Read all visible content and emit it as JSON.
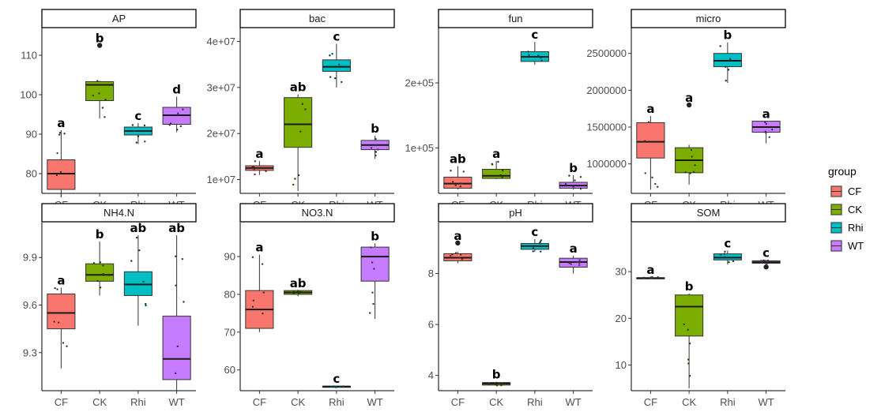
{
  "chart_data": {
    "type": "boxplot",
    "layout": "faceted 2x4, free y scales",
    "categories": [
      "CF",
      "CK",
      "Rhi",
      "WT"
    ],
    "legend": {
      "title": "group",
      "position": "right",
      "entries": [
        {
          "label": "CF",
          "color": "#F8766D"
        },
        {
          "label": "CK",
          "color": "#7CAE00"
        },
        {
          "label": "Rhi",
          "color": "#00BFC4"
        },
        {
          "label": "WT",
          "color": "#C77CFF"
        }
      ]
    },
    "panels": [
      {
        "title": "AP",
        "ylim": [
          75,
          117
        ],
        "yticks": [
          80,
          90,
          100,
          110
        ],
        "tick_labels": [
          "80",
          "90",
          "100",
          "110"
        ],
        "boxes": [
          {
            "group": "CF",
            "lower": 74,
            "q1": 76,
            "median": 80,
            "q3": 83.5,
            "upper": 91,
            "outliers": []
          },
          {
            "group": "CK",
            "lower": 94,
            "q1": 98.5,
            "median": 102.5,
            "q3": 103.3,
            "upper": 103.5,
            "outliers": [
              112.5
            ]
          },
          {
            "group": "Rhi",
            "lower": 87.5,
            "q1": 89.8,
            "median": 90.8,
            "q3": 91.8,
            "upper": 92.8,
            "outliers": []
          },
          {
            "group": "WT",
            "lower": 90.5,
            "q1": 92.5,
            "median": 94.8,
            "q3": 96.8,
            "upper": 99.5,
            "outliers": []
          }
        ],
        "letters": [
          "a",
          "b",
          "c",
          "d"
        ]
      },
      {
        "title": "bac",
        "ylim": [
          7000000,
          43000000
        ],
        "yticks": [
          10000000,
          20000000,
          30000000,
          40000000
        ],
        "tick_labels": [
          "1e+07",
          "2e+07",
          "3e+07",
          "4e+07"
        ],
        "boxes": [
          {
            "group": "CF",
            "lower": 11000000,
            "q1": 12000000,
            "median": 12500000,
            "q3": 13000000,
            "upper": 14000000,
            "outliers": []
          },
          {
            "group": "CK",
            "lower": 7500000,
            "q1": 17000000,
            "median": 22000000,
            "q3": 27800000,
            "upper": 28500000,
            "outliers": []
          },
          {
            "group": "Rhi",
            "lower": 30000000,
            "q1": 33500000,
            "median": 34500000,
            "q3": 36000000,
            "upper": 39500000,
            "outliers": []
          },
          {
            "group": "WT",
            "lower": 14500000,
            "q1": 16500000,
            "median": 17500000,
            "q3": 18500000,
            "upper": 19500000,
            "outliers": []
          }
        ],
        "letters": [
          "a",
          "ab",
          "c",
          "b"
        ]
      },
      {
        "title": "fun",
        "ylim": [
          30000,
          285000
        ],
        "yticks": [
          100000,
          200000
        ],
        "tick_labels": [
          "1e+05",
          "2e+05"
        ],
        "boxes": [
          {
            "group": "CF",
            "lower": 36000,
            "q1": 38000,
            "median": 45000,
            "q3": 55000,
            "upper": 72000,
            "outliers": []
          },
          {
            "group": "CK",
            "lower": 52000,
            "q1": 53000,
            "median": 57000,
            "q3": 67000,
            "upper": 80000,
            "outliers": []
          },
          {
            "group": "Rhi",
            "lower": 228000,
            "q1": 233000,
            "median": 240000,
            "q3": 248000,
            "upper": 263000,
            "outliers": []
          },
          {
            "group": "WT",
            "lower": 36000,
            "q1": 38000,
            "median": 42000,
            "q3": 47000,
            "upper": 58000,
            "outliers": []
          }
        ],
        "letters": [
          "ab",
          "a",
          "c",
          "b"
        ]
      },
      {
        "title": "micro",
        "ylim": [
          600000,
          2850000
        ],
        "yticks": [
          1000000,
          1500000,
          2000000,
          2500000
        ],
        "tick_labels": [
          "1000000",
          "1500000",
          "2000000",
          "2500000"
        ],
        "boxes": [
          {
            "group": "CF",
            "lower": 650000,
            "q1": 1080000,
            "median": 1300000,
            "q3": 1560000,
            "upper": 1650000,
            "outliers": []
          },
          {
            "group": "CK",
            "lower": 720000,
            "q1": 880000,
            "median": 1050000,
            "q3": 1220000,
            "upper": 1260000,
            "outliers": [
              1800000
            ]
          },
          {
            "group": "Rhi",
            "lower": 2100000,
            "q1": 2320000,
            "median": 2400000,
            "q3": 2500000,
            "upper": 2650000,
            "outliers": []
          },
          {
            "group": "WT",
            "lower": 1280000,
            "q1": 1430000,
            "median": 1500000,
            "q3": 1580000,
            "upper": 1580000,
            "outliers": []
          }
        ],
        "letters": [
          "a",
          "a",
          "b",
          "a"
        ]
      },
      {
        "title": "NH4.N",
        "ylim": [
          9.06,
          10.12
        ],
        "yticks": [
          9.3,
          9.6,
          9.9
        ],
        "tick_labels": [
          "9.3",
          "9.6",
          "9.9"
        ],
        "boxes": [
          {
            "group": "CF",
            "lower": 9.2,
            "q1": 9.45,
            "median": 9.55,
            "q3": 9.67,
            "upper": 9.71,
            "outliers": []
          },
          {
            "group": "CK",
            "lower": 9.66,
            "q1": 9.75,
            "median": 9.79,
            "q3": 9.86,
            "upper": 10.0,
            "outliers": []
          },
          {
            "group": "Rhi",
            "lower": 9.47,
            "q1": 9.66,
            "median": 9.73,
            "q3": 9.81,
            "upper": 10.04,
            "outliers": []
          },
          {
            "group": "WT",
            "lower": 9.06,
            "q1": 9.13,
            "median": 9.26,
            "q3": 9.53,
            "upper": 10.04,
            "outliers": []
          }
        ],
        "letters": [
          "a",
          "b",
          "ab",
          "ab"
        ]
      },
      {
        "title": "NO3.N",
        "ylim": [
          54.5,
          99
        ],
        "yticks": [
          60,
          70,
          80,
          90
        ],
        "tick_labels": [
          "60",
          "70",
          "80",
          "90"
        ],
        "boxes": [
          {
            "group": "CF",
            "lower": 70,
            "q1": 71,
            "median": 76,
            "q3": 81,
            "upper": 90.5,
            "outliers": []
          },
          {
            "group": "CK",
            "lower": 79.5,
            "q1": 80,
            "median": 80.5,
            "q3": 81,
            "upper": 81,
            "outliers": []
          },
          {
            "group": "Rhi",
            "lower": 55.4,
            "q1": 55.5,
            "median": 55.6,
            "q3": 55.7,
            "upper": 55.8,
            "outliers": []
          },
          {
            "group": "WT",
            "lower": 73.5,
            "q1": 83.5,
            "median": 90,
            "q3": 92.5,
            "upper": 93.5,
            "outliers": []
          }
        ],
        "letters": [
          "a",
          "ab",
          "c",
          "b"
        ]
      },
      {
        "title": "pH",
        "ylim": [
          3.4,
          10.0
        ],
        "yticks": [
          4,
          6,
          8
        ],
        "tick_labels": [
          "4",
          "6",
          "8"
        ],
        "boxes": [
          {
            "group": "CF",
            "lower": 8.4,
            "q1": 8.5,
            "median": 8.62,
            "q3": 8.78,
            "upper": 8.85,
            "outliers": [
              9.2
            ]
          },
          {
            "group": "CK",
            "lower": 3.6,
            "q1": 3.62,
            "median": 3.68,
            "q3": 3.72,
            "upper": 3.75,
            "outliers": []
          },
          {
            "group": "Rhi",
            "lower": 8.85,
            "q1": 8.95,
            "median": 9.08,
            "q3": 9.18,
            "upper": 9.35,
            "outliers": []
          },
          {
            "group": "WT",
            "lower": 8.0,
            "q1": 8.25,
            "median": 8.45,
            "q3": 8.6,
            "upper": 8.7,
            "outliers": []
          }
        ],
        "letters": [
          "a",
          "b",
          "c",
          "a"
        ]
      },
      {
        "title": "SOM",
        "ylim": [
          4.5,
          40.5
        ],
        "yticks": [
          10,
          20,
          30
        ],
        "tick_labels": [
          "10",
          "20",
          "30"
        ],
        "boxes": [
          {
            "group": "CF",
            "lower": 28.5,
            "q1": 28.5,
            "median": 28.6,
            "q3": 28.7,
            "upper": 28.8,
            "outliers": []
          },
          {
            "group": "CK",
            "lower": 5,
            "q1": 16.2,
            "median": 22.5,
            "q3": 25,
            "upper": 25.3,
            "outliers": []
          },
          {
            "group": "Rhi",
            "lower": 31.5,
            "q1": 32.5,
            "median": 33,
            "q3": 33.8,
            "upper": 34.5,
            "outliers": []
          },
          {
            "group": "WT",
            "lower": 31.5,
            "q1": 31.8,
            "median": 32,
            "q3": 32.3,
            "upper": 32.5,
            "outliers": [
              31
            ]
          }
        ],
        "letters": [
          "a",
          "b",
          "c",
          "c"
        ]
      }
    ]
  }
}
